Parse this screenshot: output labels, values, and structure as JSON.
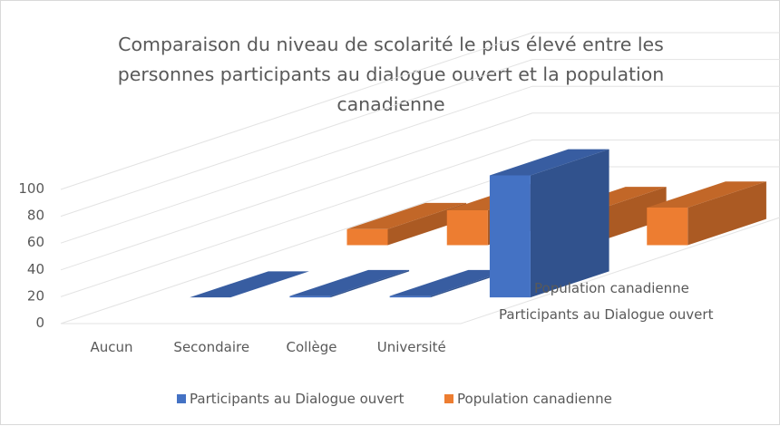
{
  "chart_data": {
    "type": "bar",
    "title": "Comparaison du niveau de scolarité le plus élevé entre les personnes participants au dialogue ouvert et la population canadienne",
    "categories": [
      "Aucun",
      "Secondaire",
      "Collège",
      "Université"
    ],
    "series": [
      {
        "name": "Participants au Dialogue ouvert",
        "values": [
          0,
          1,
          1,
          91
        ],
        "color": "#4472c4"
      },
      {
        "name": "Population canadienne",
        "values": [
          12,
          26,
          24,
          28
        ],
        "color": "#ed7d31"
      }
    ],
    "ylim": [
      0,
      100
    ],
    "yticks": [
      0,
      20,
      40,
      60,
      80,
      100
    ],
    "grid": true,
    "legend": "bottom",
    "depth_axis_labels": [
      "Population canadienne",
      "Participants au Dialogue ouvert"
    ],
    "style": "3d-bar"
  }
}
